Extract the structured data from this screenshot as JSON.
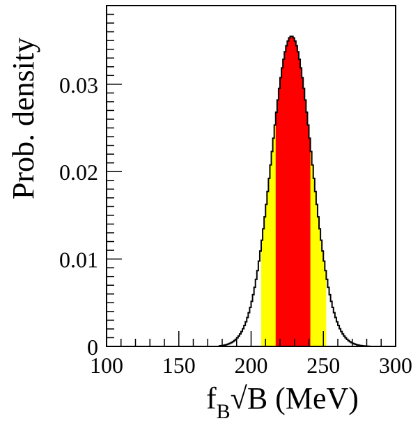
{
  "chart_data": {
    "type": "area",
    "title": "",
    "xlabel": "f",
    "xlabel_subscript": "B",
    "xlabel_rest": "√B (MeV)",
    "ylabel": "Prob. density",
    "xlim": [
      100,
      300
    ],
    "ylim": [
      0,
      0.039
    ],
    "x_ticks": [
      "100",
      "150",
      "200",
      "250",
      "300"
    ],
    "y_ticks": [
      "0",
      "0.01",
      "0.02",
      "0.03"
    ],
    "grid": false,
    "legend": "none",
    "distribution": {
      "shape": "gaussian-like histogram",
      "peak_x": 228,
      "peak_y": 0.0355,
      "sigma": 14,
      "bin_width": 1,
      "support": [
        178,
        282
      ]
    },
    "bands": [
      {
        "name": "",
        "range": [
          207,
          252
        ],
        "color": "#ffff00"
      },
      {
        "name": "",
        "range": [
          217,
          241
        ],
        "color": "#ff0000"
      }
    ],
    "colors": {
      "outline": "#000000",
      "outer_band": "#ffff00",
      "inner_band": "#ff0000"
    }
  }
}
